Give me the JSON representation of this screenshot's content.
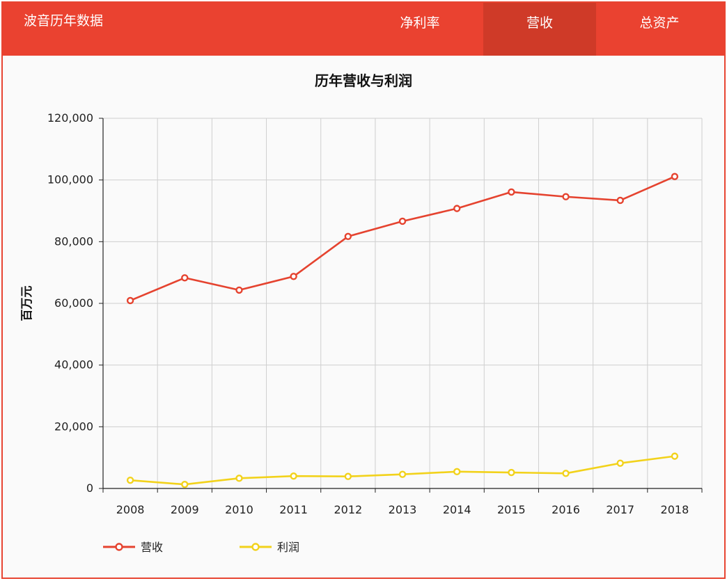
{
  "header": {
    "brand": "波音历年数据",
    "tabs": [
      {
        "label": "净利率",
        "active": false
      },
      {
        "label": "营收",
        "active": true
      },
      {
        "label": "总资产",
        "active": false
      }
    ]
  },
  "colors": {
    "header_bg": "#ea4230",
    "active_tab_bg": "#cf3a28",
    "series_revenue": "#e5432f",
    "series_profit": "#f2d21b"
  },
  "chart_data": {
    "type": "line",
    "title": "历年营收与利润",
    "xlabel": "",
    "ylabel": "百万元",
    "categories": [
      "2008",
      "2009",
      "2010",
      "2011",
      "2012",
      "2013",
      "2014",
      "2015",
      "2016",
      "2017",
      "2018"
    ],
    "ylim": [
      0,
      120000
    ],
    "yticks": [
      0,
      20000,
      40000,
      60000,
      80000,
      100000,
      120000
    ],
    "ytick_labels": [
      "0",
      "20,000",
      "40,000",
      "60,000",
      "80,000",
      "100,000",
      "120,000"
    ],
    "grid": true,
    "legend_position": "bottom-left",
    "series": [
      {
        "name": "营收",
        "color": "#e5432f",
        "values": [
          60909,
          68281,
          64306,
          68735,
          81698,
          86623,
          90762,
          96114,
          94571,
          93392,
          101127
        ]
      },
      {
        "name": "利润",
        "color": "#f2d21b",
        "values": [
          2672,
          1312,
          3307,
          4018,
          3900,
          4585,
          5446,
          5176,
          4895,
          8197,
          10460
        ]
      }
    ]
  }
}
